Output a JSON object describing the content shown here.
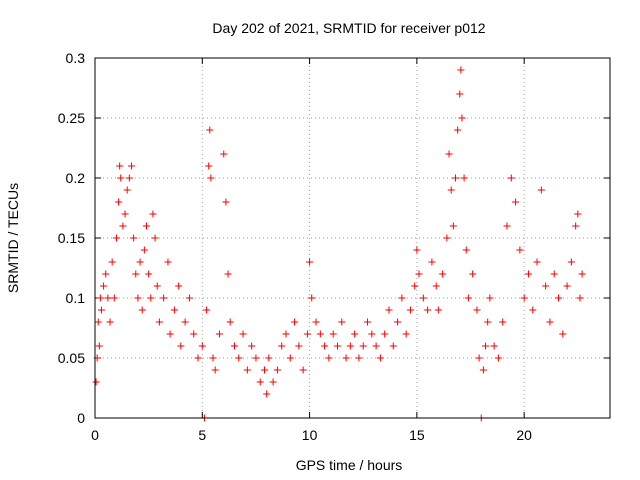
{
  "chart_data": {
    "type": "scatter",
    "title": "Day 202 of 2021, SRMTID for receiver p012",
    "xlabel": "GPS time / hours",
    "ylabel": "SRMTID / TECUs",
    "xlim": [
      0,
      24
    ],
    "ylim": [
      0,
      0.3
    ],
    "x_ticks": [
      0,
      5,
      10,
      15,
      20
    ],
    "x_tick_labels": [
      "0",
      "5",
      "10",
      "15",
      "20"
    ],
    "y_ticks": [
      0,
      0.05,
      0.1,
      0.15,
      0.2,
      0.25,
      0.3
    ],
    "y_tick_labels": [
      "0",
      "0.05",
      "0.1",
      "0.15",
      "0.2",
      "0.25",
      "0.3"
    ],
    "grid": true,
    "marker": "+",
    "series_color": "#ff0000",
    "series": [
      {
        "name": "SRMTID",
        "points": [
          [
            0.05,
            0.03
          ],
          [
            0.1,
            0.05
          ],
          [
            0.15,
            0.08
          ],
          [
            0.2,
            0.06
          ],
          [
            0.25,
            0.1
          ],
          [
            0.3,
            0.09
          ],
          [
            0.4,
            0.11
          ],
          [
            0.5,
            0.12
          ],
          [
            0.6,
            0.1
          ],
          [
            0.7,
            0.08
          ],
          [
            0.8,
            0.13
          ],
          [
            0.9,
            0.1
          ],
          [
            1.0,
            0.15
          ],
          [
            1.1,
            0.18
          ],
          [
            1.15,
            0.21
          ],
          [
            1.2,
            0.2
          ],
          [
            1.3,
            0.16
          ],
          [
            1.4,
            0.17
          ],
          [
            1.5,
            0.19
          ],
          [
            1.6,
            0.2
          ],
          [
            1.7,
            0.21
          ],
          [
            1.8,
            0.15
          ],
          [
            1.9,
            0.12
          ],
          [
            2.0,
            0.1
          ],
          [
            2.1,
            0.13
          ],
          [
            2.2,
            0.09
          ],
          [
            2.3,
            0.14
          ],
          [
            2.4,
            0.16
          ],
          [
            2.5,
            0.12
          ],
          [
            2.6,
            0.1
          ],
          [
            2.7,
            0.17
          ],
          [
            2.8,
            0.15
          ],
          [
            2.9,
            0.11
          ],
          [
            3.0,
            0.08
          ],
          [
            3.2,
            0.1
          ],
          [
            3.4,
            0.13
          ],
          [
            3.5,
            0.07
          ],
          [
            3.7,
            0.09
          ],
          [
            3.9,
            0.11
          ],
          [
            4.0,
            0.06
          ],
          [
            4.2,
            0.08
          ],
          [
            4.4,
            0.1
          ],
          [
            4.6,
            0.07
          ],
          [
            4.8,
            0.05
          ],
          [
            5.0,
            0.06
          ],
          [
            5.1,
            0.0
          ],
          [
            5.2,
            0.09
          ],
          [
            5.3,
            0.21
          ],
          [
            5.35,
            0.24
          ],
          [
            5.4,
            0.2
          ],
          [
            5.5,
            0.05
          ],
          [
            5.6,
            0.04
          ],
          [
            5.8,
            0.07
          ],
          [
            6.0,
            0.22
          ],
          [
            6.1,
            0.18
          ],
          [
            6.2,
            0.12
          ],
          [
            6.3,
            0.08
          ],
          [
            6.5,
            0.06
          ],
          [
            6.7,
            0.05
          ],
          [
            6.9,
            0.07
          ],
          [
            7.1,
            0.04
          ],
          [
            7.3,
            0.06
          ],
          [
            7.5,
            0.05
          ],
          [
            7.7,
            0.03
          ],
          [
            7.9,
            0.04
          ],
          [
            8.0,
            0.02
          ],
          [
            8.1,
            0.05
          ],
          [
            8.3,
            0.03
          ],
          [
            8.5,
            0.04
          ],
          [
            8.7,
            0.06
          ],
          [
            8.9,
            0.07
          ],
          [
            9.1,
            0.05
          ],
          [
            9.3,
            0.08
          ],
          [
            9.5,
            0.06
          ],
          [
            9.7,
            0.04
          ],
          [
            9.9,
            0.07
          ],
          [
            10.0,
            0.13
          ],
          [
            10.1,
            0.1
          ],
          [
            10.3,
            0.08
          ],
          [
            10.5,
            0.07
          ],
          [
            10.7,
            0.06
          ],
          [
            10.9,
            0.05
          ],
          [
            11.1,
            0.07
          ],
          [
            11.3,
            0.06
          ],
          [
            11.5,
            0.08
          ],
          [
            11.7,
            0.05
          ],
          [
            11.9,
            0.06
          ],
          [
            12.1,
            0.07
          ],
          [
            12.3,
            0.05
          ],
          [
            12.5,
            0.06
          ],
          [
            12.7,
            0.08
          ],
          [
            12.9,
            0.07
          ],
          [
            13.1,
            0.06
          ],
          [
            13.3,
            0.05
          ],
          [
            13.5,
            0.07
          ],
          [
            13.7,
            0.09
          ],
          [
            13.9,
            0.06
          ],
          [
            14.1,
            0.08
          ],
          [
            14.3,
            0.1
          ],
          [
            14.5,
            0.07
          ],
          [
            14.7,
            0.09
          ],
          [
            14.9,
            0.11
          ],
          [
            15.0,
            0.14
          ],
          [
            15.1,
            0.12
          ],
          [
            15.3,
            0.1
          ],
          [
            15.5,
            0.09
          ],
          [
            15.7,
            0.13
          ],
          [
            15.9,
            0.11
          ],
          [
            16.0,
            0.09
          ],
          [
            16.2,
            0.12
          ],
          [
            16.4,
            0.15
          ],
          [
            16.5,
            0.22
          ],
          [
            16.6,
            0.19
          ],
          [
            16.7,
            0.16
          ],
          [
            16.8,
            0.2
          ],
          [
            16.9,
            0.24
          ],
          [
            17.0,
            0.27
          ],
          [
            17.05,
            0.29
          ],
          [
            17.1,
            0.25
          ],
          [
            17.2,
            0.2
          ],
          [
            17.3,
            0.14
          ],
          [
            17.4,
            0.1
          ],
          [
            17.6,
            0.12
          ],
          [
            17.8,
            0.09
          ],
          [
            17.9,
            0.05
          ],
          [
            18.0,
            0.0
          ],
          [
            18.1,
            0.04
          ],
          [
            18.2,
            0.06
          ],
          [
            18.3,
            0.08
          ],
          [
            18.4,
            0.1
          ],
          [
            18.6,
            0.06
          ],
          [
            18.8,
            0.05
          ],
          [
            19.0,
            0.08
          ],
          [
            19.2,
            0.16
          ],
          [
            19.4,
            0.2
          ],
          [
            19.6,
            0.18
          ],
          [
            19.8,
            0.14
          ],
          [
            20.0,
            0.1
          ],
          [
            20.2,
            0.12
          ],
          [
            20.4,
            0.09
          ],
          [
            20.6,
            0.13
          ],
          [
            20.8,
            0.19
          ],
          [
            21.0,
            0.11
          ],
          [
            21.2,
            0.08
          ],
          [
            21.4,
            0.12
          ],
          [
            21.6,
            0.1
          ],
          [
            21.8,
            0.07
          ],
          [
            22.0,
            0.11
          ],
          [
            22.2,
            0.13
          ],
          [
            22.4,
            0.16
          ],
          [
            22.5,
            0.17
          ],
          [
            22.6,
            0.1
          ],
          [
            22.7,
            0.12
          ]
        ]
      }
    ]
  }
}
